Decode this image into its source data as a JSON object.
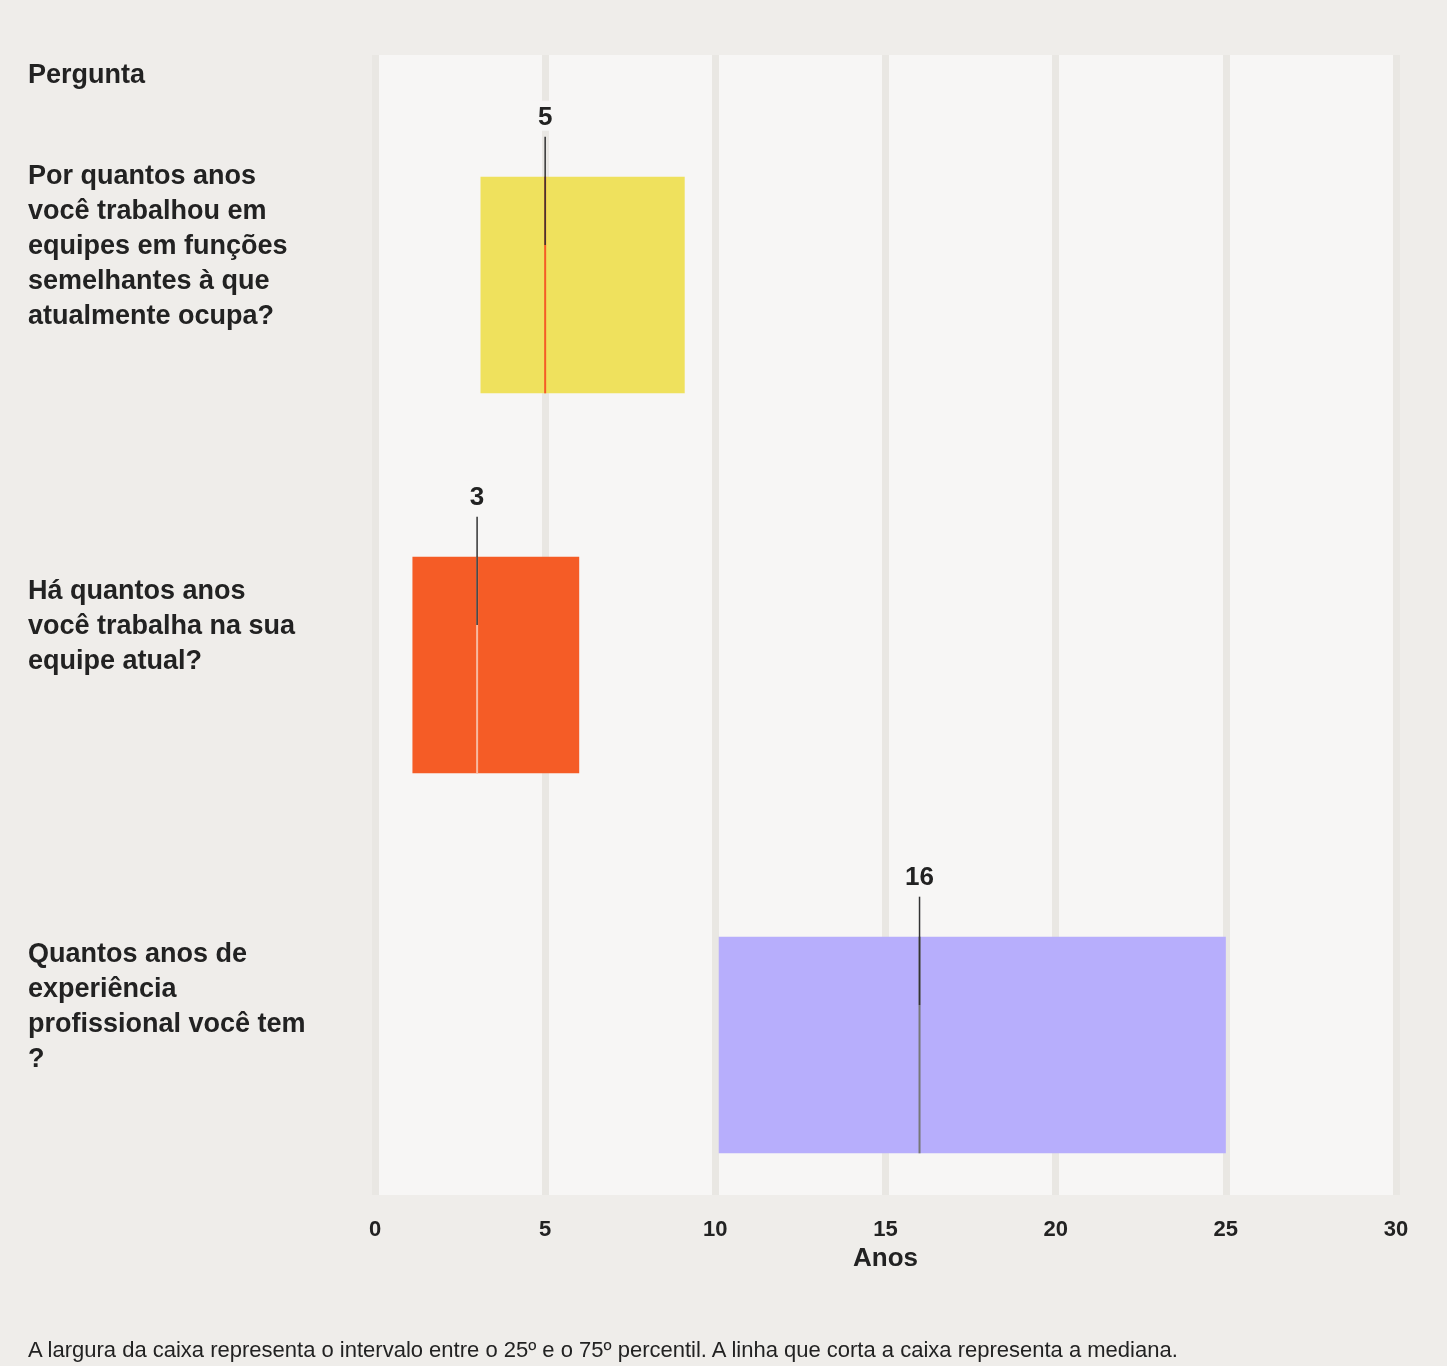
{
  "chart_data": {
    "type": "box",
    "orientation": "horizontal",
    "ylabel": "Pergunta",
    "xlabel": "Anos",
    "categories": [
      "Por quantos anos você trabalhou em equipes em funções semelhantes à que atualmente ocupa?",
      "Há quantos anos você trabalha na sua equipe atual?",
      "Quantos anos de experiência profissional você tem?"
    ],
    "boxes": [
      {
        "low": 3.1,
        "q1": 3.1,
        "median": 5,
        "q3": 9.1,
        "high": 9.1
      },
      {
        "low": 1.1,
        "q1": 1.1,
        "median": 3,
        "q3": 6.0,
        "high": 6.0
      },
      {
        "low": 10.1,
        "q1": 10.1,
        "median": 16,
        "q3": 25,
        "high": 25
      }
    ],
    "colors": [
      "#efe15d",
      "#f55c26",
      "#b7aefc"
    ],
    "xlim": [
      0,
      30
    ],
    "xticks": [
      0,
      5,
      10,
      15,
      20,
      25,
      30
    ],
    "grid": "x",
    "annotations": [
      {
        "text": "5",
        "x": 5,
        "y": "Por quantos anos você trabalhou em equipes em funções semelhantes à que atualmente ocupa?"
      },
      {
        "text": "3",
        "x": 3,
        "y": "Há quantos anos você trabalha na sua equipe atual?"
      },
      {
        "text": "16",
        "x": 16,
        "y": "Quantos anos de experiência profissional você tem?"
      },
      "A largura da caixa representa o intervalo entre o 25º e o 75º percentil. A linha que corta a caixa representa a mediana."
    ]
  }
}
